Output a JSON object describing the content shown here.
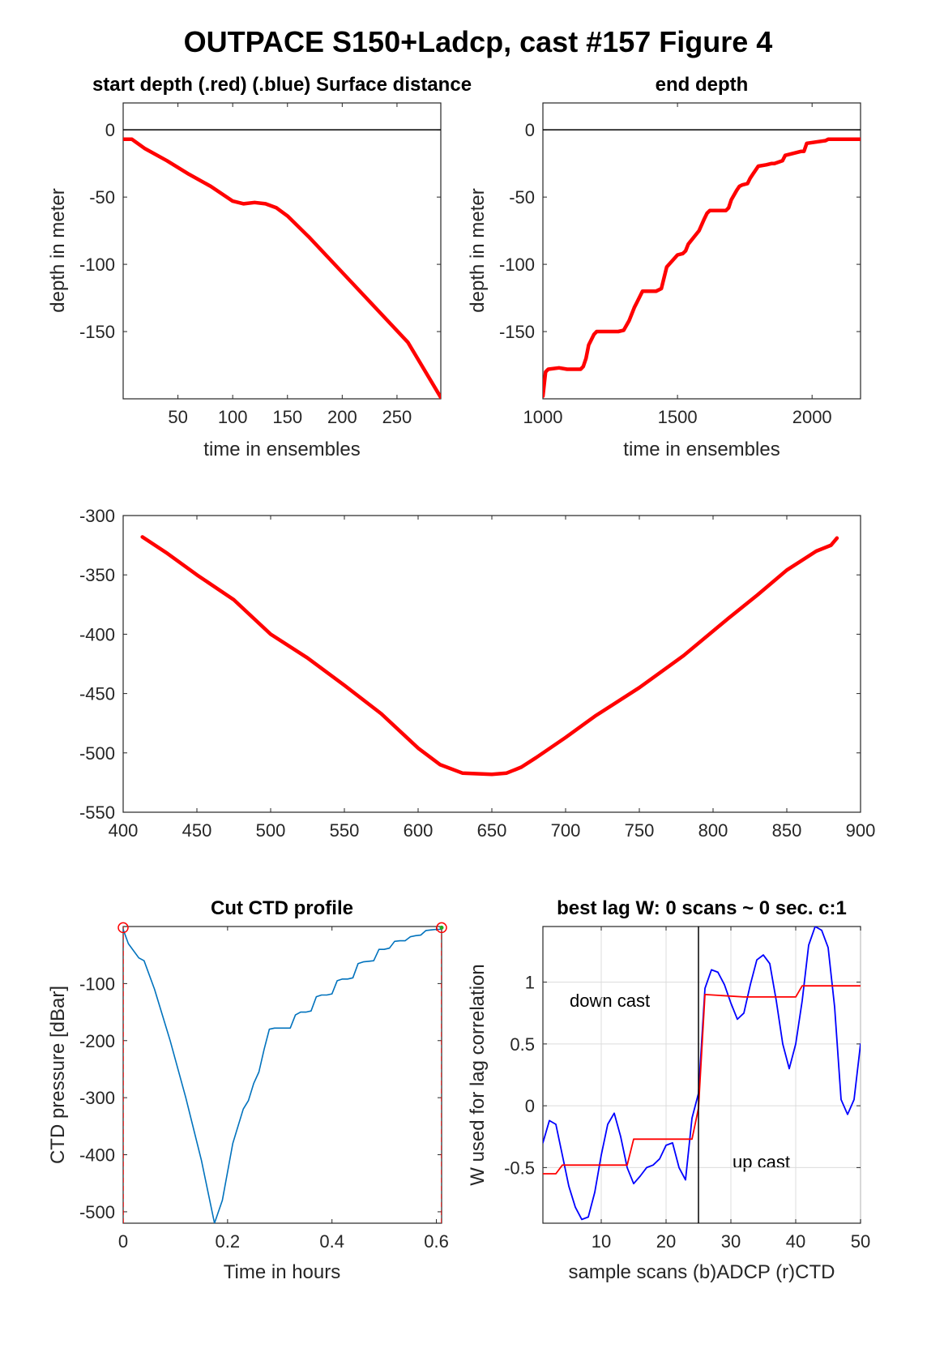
{
  "figure": {
    "title": "OUTPACE S150+Ladcp, cast #157    Figure 4"
  },
  "chart_data": [
    {
      "id": "start_depth",
      "type": "line",
      "title": "start depth (.red) (.blue) Surface distance",
      "xlabel": "time in ensembles",
      "ylabel": "depth in meter",
      "xlim": [
        0,
        290
      ],
      "ylim": [
        -200,
        20
      ],
      "xticks": [
        50,
        100,
        150,
        200,
        250
      ],
      "yticks": [
        0,
        -50,
        -100,
        -150
      ],
      "hline": 0,
      "series": [
        {
          "color": "#ff0000",
          "x": [
            0,
            8,
            20,
            40,
            60,
            80,
            100,
            110,
            120,
            130,
            140,
            150,
            170,
            200,
            230,
            260,
            290
          ],
          "y": [
            -7,
            -7,
            -14,
            -23,
            -33,
            -42,
            -53,
            -55,
            -54,
            -55,
            -58,
            -64,
            -80,
            -106,
            -132,
            -158,
            -199
          ]
        }
      ]
    },
    {
      "id": "end_depth",
      "type": "line",
      "title": "end depth",
      "xlabel": "time in ensembles",
      "ylabel": "depth in meter",
      "xlim": [
        1000,
        2180
      ],
      "ylim": [
        -200,
        20
      ],
      "xticks": [
        1000,
        1500,
        2000
      ],
      "yticks": [
        0,
        -50,
        -100,
        -150
      ],
      "hline": 0,
      "series": [
        {
          "color": "#ff0000",
          "x": [
            1000,
            1010,
            1020,
            1060,
            1090,
            1140,
            1150,
            1160,
            1170,
            1190,
            1200,
            1280,
            1300,
            1320,
            1340,
            1350,
            1360,
            1370,
            1420,
            1440,
            1450,
            1460,
            1500,
            1520,
            1530,
            1540,
            1580,
            1600,
            1610,
            1620,
            1670,
            1680,
            1690,
            1700,
            1720,
            1730,
            1740,
            1760,
            1770,
            1780,
            1800,
            1830,
            1850,
            1860,
            1890,
            1900,
            1960,
            1970,
            1980,
            2050,
            2060,
            2070,
            2180
          ],
          "y": [
            -198,
            -180,
            -178,
            -177,
            -178,
            -178,
            -176,
            -170,
            -160,
            -152,
            -150,
            -150,
            -149,
            -142,
            -132,
            -128,
            -124,
            -120,
            -120,
            -118,
            -110,
            -102,
            -93,
            -92,
            -90,
            -85,
            -75,
            -66,
            -62,
            -60,
            -60,
            -60,
            -58,
            -52,
            -45,
            -42,
            -41,
            -40,
            -36,
            -33,
            -27,
            -26,
            -25,
            -25,
            -23,
            -19,
            -16,
            -16,
            -10,
            -8,
            -7,
            -7,
            -7
          ]
        }
      ]
    },
    {
      "id": "middle",
      "type": "line",
      "title": "",
      "xlabel": "",
      "ylabel": "",
      "xlim": [
        400,
        900
      ],
      "ylim": [
        -550,
        -300
      ],
      "xticks": [
        400,
        450,
        500,
        550,
        600,
        650,
        700,
        750,
        800,
        850,
        900
      ],
      "yticks": [
        -300,
        -350,
        -400,
        -450,
        -500,
        -550
      ],
      "series": [
        {
          "color": "#ff0000",
          "x": [
            413,
            430,
            450,
            475,
            500,
            525,
            550,
            575,
            600,
            615,
            630,
            650,
            660,
            670,
            680,
            700,
            720,
            750,
            780,
            810,
            830,
            850,
            860,
            870,
            880,
            884
          ],
          "y": [
            -318,
            -332,
            -350,
            -371,
            -400,
            -420,
            -443,
            -467,
            -496,
            -510,
            -517,
            -518,
            -517,
            -512,
            -504,
            -487,
            -469,
            -445,
            -418,
            -387,
            -367,
            -346,
            -338,
            -330,
            -325,
            -319
          ]
        }
      ]
    },
    {
      "id": "cut_ctd",
      "type": "line",
      "title": "Cut CTD profile",
      "xlabel": "Time in hours",
      "ylabel": "CTD pressure [dBar]",
      "xlim": [
        0,
        0.61
      ],
      "ylim": [
        -520,
        0
      ],
      "xticks": [
        0,
        0.2,
        0.4,
        0.6
      ],
      "yticks": [
        -100,
        -200,
        -300,
        -400,
        -500
      ],
      "series": [
        {
          "color": "#0072bd",
          "x": [
            0,
            0.01,
            0.03,
            0.04,
            0.06,
            0.09,
            0.12,
            0.15,
            0.175,
            0.19,
            0.21,
            0.23,
            0.24,
            0.25,
            0.26,
            0.27,
            0.28,
            0.29,
            0.31,
            0.32,
            0.33,
            0.34,
            0.35,
            0.36,
            0.37,
            0.38,
            0.39,
            0.4,
            0.41,
            0.42,
            0.43,
            0.44,
            0.45,
            0.46,
            0.47,
            0.48,
            0.49,
            0.5,
            0.51,
            0.52,
            0.53,
            0.54,
            0.55,
            0.56,
            0.57,
            0.58,
            0.59,
            0.6,
            0.61
          ],
          "y": [
            -5,
            -30,
            -55,
            -60,
            -110,
            -200,
            -300,
            -410,
            -520,
            -480,
            -380,
            -320,
            -305,
            -275,
            -255,
            -215,
            -180,
            -178,
            -178,
            -178,
            -155,
            -150,
            -150,
            -148,
            -123,
            -120,
            -120,
            -118,
            -95,
            -92,
            -92,
            -90,
            -65,
            -62,
            -61,
            -60,
            -40,
            -40,
            -38,
            -26,
            -25,
            -25,
            -18,
            -16,
            -15,
            -7,
            -6,
            -5,
            -5
          ]
        }
      ],
      "markers_open": [
        [
          0,
          -2
        ],
        [
          0.61,
          -2
        ]
      ],
      "marker_color": "#ff0000",
      "vlines_dashed": [
        0,
        0.61
      ]
    },
    {
      "id": "best_lag",
      "type": "line",
      "title": "best lag W: 0 scans ~ 0 sec.  c:1",
      "xlabel": "sample scans (b)ADCP (r)CTD",
      "ylabel": "W used for lag correlation",
      "xlim": [
        1,
        50
      ],
      "ylim": [
        -0.95,
        1.45
      ],
      "xticks": [
        10,
        20,
        30,
        40,
        50
      ],
      "yticks": [
        1,
        0.5,
        0,
        -0.5
      ],
      "grid": true,
      "vline": 25,
      "annotations": [
        "down cast",
        "up cast"
      ],
      "series": [
        {
          "color": "#0000ff",
          "x": [
            1,
            2,
            3,
            4,
            5,
            6,
            7,
            8,
            9,
            10,
            11,
            12,
            13,
            14,
            15,
            16,
            17,
            18,
            19,
            20,
            21,
            22,
            23,
            24,
            25,
            26,
            27,
            28,
            29,
            30,
            31,
            32,
            33,
            34,
            35,
            36,
            37,
            38,
            39,
            40,
            41,
            42,
            43,
            44,
            45,
            46,
            47,
            48,
            49,
            50
          ],
          "y": [
            -0.3,
            -0.12,
            -0.15,
            -0.4,
            -0.65,
            -0.82,
            -0.92,
            -0.9,
            -0.7,
            -0.4,
            -0.15,
            -0.06,
            -0.25,
            -0.5,
            -0.63,
            -0.57,
            -0.5,
            -0.48,
            -0.43,
            -0.32,
            -0.3,
            -0.5,
            -0.6,
            -0.1,
            0.1,
            0.95,
            1.1,
            1.08,
            0.98,
            0.83,
            0.7,
            0.75,
            0.98,
            1.18,
            1.22,
            1.15,
            0.85,
            0.5,
            0.3,
            0.5,
            0.85,
            1.3,
            1.45,
            1.42,
            1.28,
            0.8,
            0.05,
            -0.07,
            0.05,
            0.5
          ]
        },
        {
          "color": "#ff0000",
          "x": [
            1,
            3,
            4,
            14,
            15,
            24,
            25,
            26,
            32,
            40,
            41,
            50
          ],
          "y": [
            -0.55,
            -0.55,
            -0.48,
            -0.48,
            -0.27,
            -0.27,
            -0.02,
            0.9,
            0.88,
            0.88,
            0.97,
            0.97
          ]
        }
      ]
    }
  ]
}
